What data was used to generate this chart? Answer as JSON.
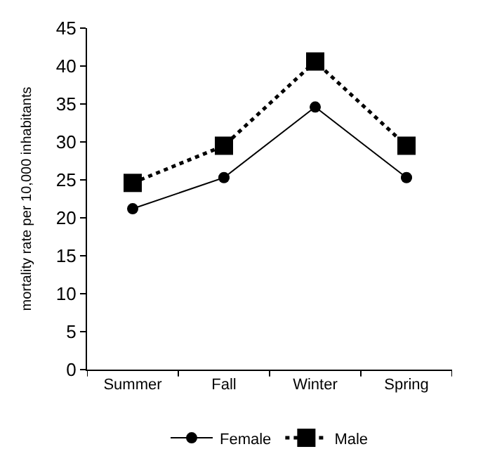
{
  "chart_data": {
    "type": "line",
    "ylabel": "mortality rate per 10,000 inhabitants",
    "categories": [
      "Summer",
      "Fall",
      "Winter",
      "Spring"
    ],
    "series": [
      {
        "name": "Female",
        "color": "#000000",
        "values": [
          21.2,
          25.3,
          34.6,
          25.3
        ],
        "marker": "circle",
        "line_style": "solid"
      },
      {
        "name": "Male",
        "color": "#000000",
        "values": [
          24.6,
          29.5,
          40.6,
          29.5
        ],
        "marker": "square",
        "line_style": "dotted"
      }
    ],
    "ylim": [
      0,
      45
    ],
    "yticks": [
      0,
      5,
      10,
      15,
      20,
      25,
      30,
      35,
      40,
      45
    ],
    "legend": "bottom"
  }
}
